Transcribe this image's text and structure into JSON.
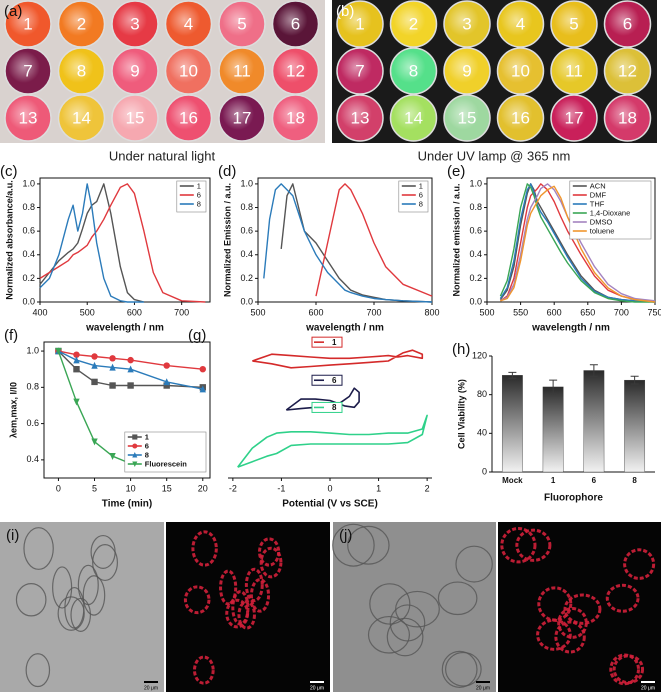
{
  "panels": {
    "a": {
      "label": "(a)",
      "wells": [
        "1",
        "2",
        "3",
        "4",
        "5",
        "6",
        "7",
        "8",
        "9",
        "10",
        "11",
        "12",
        "13",
        "14",
        "15",
        "16",
        "17",
        "18"
      ],
      "caption": "Under natural light"
    },
    "b": {
      "label": "(b)",
      "wells": [
        "1",
        "2",
        "3",
        "4",
        "5",
        "6",
        "7",
        "8",
        "9",
        "10",
        "11",
        "12",
        "13",
        "14",
        "15",
        "16",
        "17",
        "18"
      ],
      "caption": "Under UV lamp @ 365 nm"
    },
    "i": {
      "label": "(i)",
      "scale_bars": [
        "20 μm",
        "20 μm"
      ]
    },
    "j": {
      "label": "(j)",
      "scale_bars": [
        "20 μm",
        "20 μm"
      ]
    }
  },
  "chart_data": [
    {
      "type": "line",
      "label": "(c)",
      "xlabel": "wavelength / nm",
      "ylabel": "Normalized absorbance/a.u.",
      "x": [
        400,
        420,
        440,
        460,
        470,
        480,
        490,
        500,
        510,
        520,
        535,
        550,
        570,
        585,
        600,
        620,
        640,
        660,
        700,
        750
      ],
      "xlim": [
        400,
        760
      ],
      "xticks": [
        400,
        500,
        600,
        700
      ],
      "ylim": [
        0,
        1.05
      ],
      "yticks": [
        {
          "value": 0,
          "label": "0.0"
        },
        0.2,
        0.4,
        0.6,
        0.8,
        {
          "value": 1,
          "label": "1.0"
        }
      ],
      "legend": "upper right",
      "series": [
        {
          "name": "1",
          "color": "#555555",
          "values": [
            0.15,
            0.25,
            0.35,
            0.42,
            0.45,
            0.5,
            0.62,
            0.75,
            0.82,
            0.85,
            1.0,
            0.75,
            0.3,
            0.08,
            0.02,
            0,
            null,
            null,
            null,
            null
          ]
        },
        {
          "name": "6",
          "color": "#e0393e",
          "values": [
            0.2,
            0.25,
            0.3,
            0.35,
            0.4,
            0.42,
            0.45,
            0.48,
            0.55,
            0.6,
            0.7,
            0.82,
            0.97,
            1.0,
            0.92,
            0.6,
            0.25,
            0.08,
            0.01,
            0
          ]
        },
        {
          "name": "8",
          "color": "#2b7bba",
          "values": [
            0.12,
            0.2,
            0.4,
            0.7,
            0.82,
            0.6,
            0.75,
            1.0,
            0.8,
            0.5,
            0.2,
            0.05,
            0.01,
            0,
            0,
            0,
            null,
            null,
            null,
            null
          ]
        }
      ]
    },
    {
      "type": "line",
      "label": "(d)",
      "xlabel": "wavelength / nm",
      "ylabel": "Normalized Emission / a.u.",
      "x": [
        510,
        520,
        530,
        540,
        550,
        560,
        570,
        580,
        600,
        620,
        640,
        650,
        660,
        680,
        700,
        720,
        750,
        800
      ],
      "xlim": [
        500,
        800
      ],
      "xticks": [
        500,
        600,
        700,
        800
      ],
      "ylim": [
        0,
        1.05
      ],
      "yticks": [
        {
          "value": 0,
          "label": "0.0"
        },
        0.2,
        0.4,
        0.6,
        0.8,
        {
          "value": 1,
          "label": "1.0"
        }
      ],
      "legend": "upper right",
      "series": [
        {
          "name": "1",
          "color": "#555555",
          "values": [
            null,
            null,
            null,
            0.45,
            0.9,
            1.0,
            0.8,
            0.6,
            0.5,
            0.35,
            0.2,
            0.15,
            0.1,
            0.06,
            0.04,
            0.02,
            0.01,
            0
          ]
        },
        {
          "name": "6",
          "color": "#e0393e",
          "values": [
            null,
            null,
            null,
            null,
            null,
            null,
            null,
            null,
            0.05,
            0.5,
            0.95,
            1.0,
            0.95,
            0.75,
            0.5,
            0.3,
            0.15,
            0.05
          ]
        },
        {
          "name": "8",
          "color": "#2b7bba",
          "values": [
            0.2,
            0.7,
            0.95,
            1.0,
            0.95,
            0.9,
            0.75,
            0.6,
            0.4,
            0.25,
            0.15,
            0.1,
            0.08,
            0.05,
            0.03,
            0.02,
            0.01,
            0
          ]
        }
      ]
    },
    {
      "type": "line",
      "label": "(e)",
      "xlabel": "wavelength / nm",
      "ylabel": "Normalized emission / a.u.",
      "x": [
        520,
        530,
        540,
        550,
        560,
        565,
        570,
        575,
        580,
        590,
        600,
        610,
        620,
        640,
        660,
        680,
        700,
        720,
        750
      ],
      "xlim": [
        500,
        750
      ],
      "xticks": [
        500,
        550,
        600,
        650,
        700,
        750
      ],
      "ylim": [
        0,
        1.05
      ],
      "yticks": [
        {
          "value": 0,
          "label": "0.0"
        },
        0.2,
        0.4,
        0.6,
        0.8,
        {
          "value": 1,
          "label": "1.0"
        }
      ],
      "legend": "upper right",
      "series": [
        {
          "name": "ACN",
          "color": "#555555",
          "values": [
            0.02,
            0.1,
            0.3,
            0.65,
            0.92,
            1.0,
            0.95,
            0.85,
            0.8,
            0.7,
            0.6,
            0.5,
            0.4,
            0.22,
            0.1,
            0.04,
            0.02,
            0.01,
            0
          ]
        },
        {
          "name": "DMF",
          "color": "#e0393e",
          "values": [
            0.01,
            0.05,
            0.2,
            0.5,
            0.8,
            0.9,
            0.93,
            0.96,
            1.0,
            0.95,
            0.85,
            0.72,
            0.6,
            0.4,
            0.22,
            0.1,
            0.05,
            0.02,
            0
          ]
        },
        {
          "name": "THF",
          "color": "#2b7bba",
          "values": [
            0.03,
            0.12,
            0.35,
            0.7,
            0.95,
            1.0,
            0.93,
            0.82,
            0.76,
            0.68,
            0.58,
            0.48,
            0.38,
            0.2,
            0.09,
            0.04,
            0.02,
            0.01,
            0
          ]
        },
        {
          "name": "1,4-Dioxane",
          "color": "#3aa655",
          "values": [
            0.05,
            0.18,
            0.45,
            0.8,
            1.0,
            0.97,
            0.9,
            0.8,
            0.72,
            0.62,
            0.52,
            0.42,
            0.33,
            0.18,
            0.08,
            0.03,
            0.01,
            0,
            0
          ]
        },
        {
          "name": "DMSO",
          "color": "#a483c0",
          "values": [
            0.01,
            0.04,
            0.15,
            0.4,
            0.7,
            0.8,
            0.85,
            0.9,
            0.96,
            1.0,
            0.95,
            0.85,
            0.72,
            0.5,
            0.3,
            0.15,
            0.07,
            0.03,
            0.01
          ]
        },
        {
          "name": "toluene",
          "color": "#f0962e",
          "values": [
            0.01,
            0.03,
            0.12,
            0.35,
            0.65,
            0.75,
            0.8,
            0.85,
            0.9,
            0.95,
            0.98,
            0.88,
            0.72,
            0.45,
            0.25,
            0.12,
            0.05,
            0.02,
            0
          ]
        }
      ]
    },
    {
      "type": "line",
      "label": "(f)",
      "xlabel": "Time (min)",
      "ylabel": "λem,max, I/I0",
      "x": [
        0,
        2.5,
        5,
        7.5,
        10,
        15,
        20
      ],
      "xlim": [
        -2,
        21
      ],
      "xticks": [
        0,
        5,
        10,
        15,
        20
      ],
      "ylim": [
        0.3,
        1.05
      ],
      "yticks": [
        0.4,
        0.6,
        0.8,
        {
          "value": 1,
          "label": "1.0"
        }
      ],
      "legend": "lower right",
      "series": [
        {
          "name": "1",
          "color": "#555555",
          "marker": "square",
          "values": [
            1.0,
            0.9,
            0.83,
            0.81,
            0.81,
            0.81,
            0.8
          ]
        },
        {
          "name": "6",
          "color": "#e0393e",
          "marker": "circle",
          "values": [
            1.0,
            0.98,
            0.97,
            0.96,
            0.95,
            0.92,
            0.9
          ]
        },
        {
          "name": "8",
          "color": "#2b7bba",
          "marker": "triangle-up",
          "values": [
            1.0,
            0.95,
            0.92,
            0.91,
            0.9,
            0.83,
            0.79
          ]
        },
        {
          "name": "Fluorescein",
          "color": "#3aa655",
          "marker": "triangle-down",
          "values": [
            1.0,
            0.72,
            0.5,
            0.42,
            0.38,
            null,
            null
          ]
        }
      ]
    },
    {
      "type": "cv",
      "label": "(g)",
      "xlabel": "Potential  (V vs SCE)",
      "xlim": [
        -2.1,
        2.1
      ],
      "xticks": [
        -2,
        -1,
        0,
        1,
        2
      ],
      "ylim": [
        0,
        10
      ],
      "legend": "inline",
      "series": [
        {
          "name": "1",
          "color": "#d42a2a",
          "x": [
            -1.6,
            -1.2,
            -0.8,
            -0.4,
            0,
            0.4,
            0.8,
            1.2,
            1.5,
            1.7,
            1.9,
            1.9,
            1.6,
            1.4,
            1.2,
            0.8,
            0.4,
            0,
            -0.4,
            -0.8,
            -1.2,
            -1.6
          ],
          "values": [
            8.6,
            8.4,
            8.1,
            8.2,
            8.3,
            8.4,
            8.5,
            8.6,
            9.2,
            9.4,
            9.1,
            8.8,
            9.0,
            8.9,
            9.0,
            8.9,
            8.8,
            8.8,
            8.9,
            9.0,
            9.1,
            8.6
          ]
        },
        {
          "name": "6",
          "color": "#1c1c4a",
          "x": [
            -0.9,
            -0.6,
            -0.3,
            0,
            0.2,
            0.4,
            0.5,
            0.6,
            0.6,
            0.5,
            0.3,
            0,
            -0.3,
            -0.6,
            -0.9
          ],
          "values": [
            5.0,
            5.1,
            5.2,
            5.3,
            5.5,
            6.0,
            6.6,
            6.3,
            5.6,
            5.2,
            5.3,
            5.7,
            5.8,
            5.8,
            5.0
          ]
        },
        {
          "name": "8",
          "color": "#2fd18a",
          "x": [
            -1.9,
            -1.6,
            -1.3,
            -1.1,
            -0.8,
            -0.4,
            0,
            0.4,
            0.8,
            1.2,
            1.6,
            1.9,
            2.0,
            1.9,
            1.6,
            1.2,
            0.8,
            0.4,
            0,
            -0.4,
            -0.8,
            -1.1,
            -1.3,
            -1.6,
            -1.9
          ],
          "values": [
            0.8,
            1.2,
            1.6,
            1.8,
            2.4,
            2.5,
            2.5,
            2.5,
            2.5,
            2.5,
            2.6,
            3.2,
            4.6,
            3.6,
            3.3,
            3.3,
            3.2,
            3.2,
            3.3,
            3.4,
            3.4,
            3.3,
            3.0,
            2.2,
            0.8
          ]
        }
      ]
    },
    {
      "type": "bar",
      "label": "(h)",
      "xlabel": "Fluorophore",
      "ylabel": "Cell Viability (%)",
      "categories": [
        "Mock",
        "1",
        "6",
        "8"
      ],
      "values": [
        100,
        88,
        105,
        95
      ],
      "errors": [
        3,
        7,
        6,
        4
      ],
      "ylim": [
        0,
        120
      ],
      "yticks": [
        0,
        40,
        80,
        120
      ],
      "color": "#3a3a3a"
    }
  ]
}
